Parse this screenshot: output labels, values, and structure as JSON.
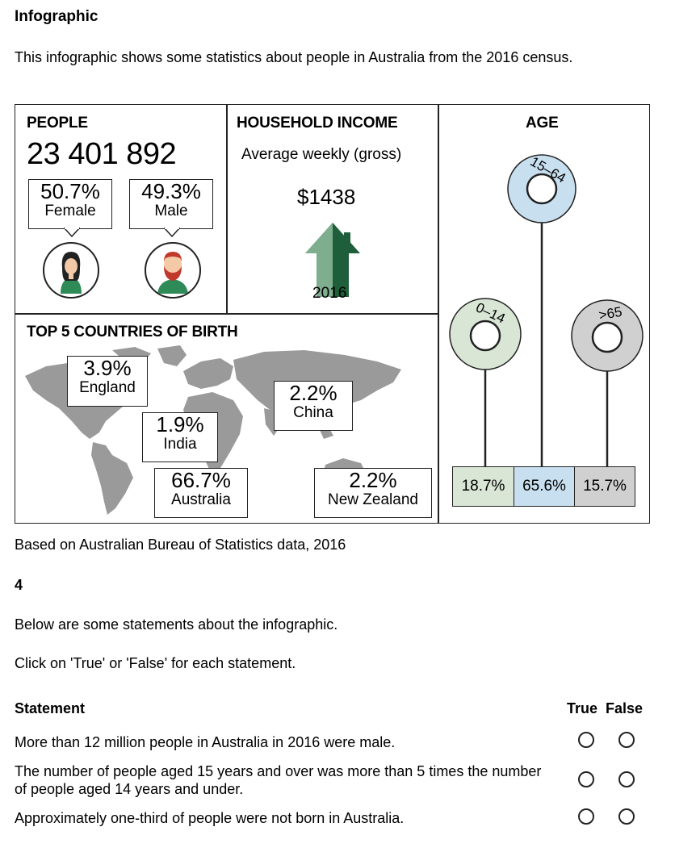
{
  "heading": "Infographic",
  "intro": "This infographic shows some statistics about people in Australia from the 2016 census.",
  "infographic": {
    "people": {
      "title": "PEOPLE",
      "total": "23 401 892",
      "female_pct": "50.7%",
      "female_label": "Female",
      "male_pct": "49.3%",
      "male_label": "Male"
    },
    "income": {
      "title": "HOUSEHOLD INCOME",
      "subtitle": "Average weekly (gross)",
      "amount": "$1438",
      "year": "2016"
    },
    "age": {
      "title": "AGE",
      "groups": [
        {
          "label": "0–14",
          "pct": "18.7%",
          "color": "#d9e6d6"
        },
        {
          "label": "15–64",
          "pct": "65.6%",
          "color": "#c8dff0"
        },
        {
          "label": ">65",
          "pct": "15.7%",
          "color": "#d0d0d0"
        }
      ]
    },
    "countries": {
      "title": "TOP 5 COUNTRIES OF BIRTH",
      "england_pct": "3.9%",
      "england_label": "England",
      "india_pct": "1.9%",
      "india_label": "India",
      "china_pct": "2.2%",
      "china_label": "China",
      "australia_pct": "66.7%",
      "australia_label": "Australia",
      "nz_pct": "2.2%",
      "nz_label": "New Zealand"
    }
  },
  "source": "Based on Australian Bureau of Statistics data, 2016",
  "question": {
    "number": "4",
    "instruction1": "Below are some statements about the infographic.",
    "instruction2": "Click on 'True' or 'False' for each statement.",
    "col_statement": "Statement",
    "col_true": "True",
    "col_false": "False",
    "statements": [
      {
        "text": "More than 12 million people in Australia in 2016 were male."
      },
      {
        "text": "The number of people aged 15 years and over was more than 5 times the number of people aged 14 years and under."
      },
      {
        "text": "Approximately one-third of people were not born in Australia."
      }
    ]
  }
}
